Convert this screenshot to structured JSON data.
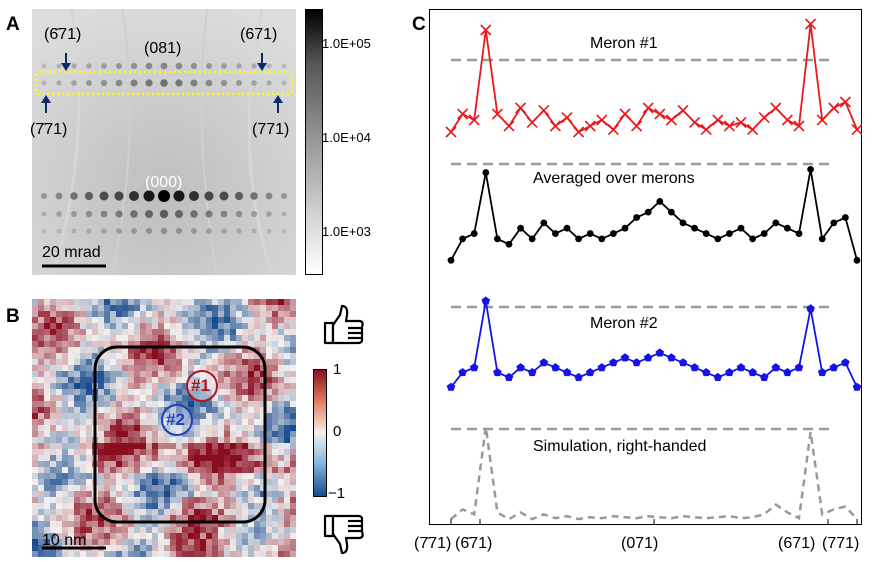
{
  "panels": {
    "a": {
      "letter": "A",
      "spots": {
        "top_left": "(6̄71)",
        "top_center": "(081)",
        "top_right": "(671)",
        "bottom_left": "(7̄71)",
        "bottom_right": "(771)",
        "center": "(000)"
      },
      "scale_bar": "20 mrad",
      "colorbar_ticks": [
        "1.0E+05",
        "1.0E+04",
        "1.0E+03"
      ],
      "colorbar_scale": "log"
    },
    "b": {
      "letter": "B",
      "scale_bar": "10 nm",
      "marker_1": "#1",
      "marker_2": "#2",
      "colorbar_ticks": [
        "1",
        "0",
        "−1"
      ],
      "colorbar_range": [
        -1,
        1
      ],
      "icons": [
        "thumbs-up-icon",
        "thumbs-down-icon"
      ]
    },
    "c": {
      "letter": "C",
      "x_tick_labels": [
        "(7̄71)",
        "(6̄71)",
        "(071)",
        "(671)",
        "(771)"
      ],
      "trace_labels": [
        "Meron #1",
        "Averaged over merons",
        "Meron #2",
        "Simulation, right-handed"
      ],
      "colors": {
        "meron1": "#e8191c",
        "average": "#000000",
        "meron2": "#1414e6",
        "simulation": "#999999"
      }
    }
  },
  "chart_data": {
    "type": "line",
    "x": [
      -7,
      -6.6,
      -6.2,
      -5.8,
      -5.4,
      -5,
      -4.6,
      -4.2,
      -3.8,
      -3.4,
      -3,
      -2.6,
      -2.2,
      -1.8,
      -1.4,
      -1,
      -0.6,
      -0.2,
      0.2,
      0.6,
      1,
      1.4,
      1.8,
      2.2,
      2.6,
      3,
      3.4,
      3.8,
      4.2,
      4.6,
      5,
      5.4,
      5.8,
      6.2,
      6.6,
      7
    ],
    "series": [
      {
        "name": "Meron #1",
        "marker": "x",
        "color": "#e8191c",
        "values": [
          0.1,
          0.25,
          0.2,
          0.95,
          0.25,
          0.15,
          0.3,
          0.18,
          0.28,
          0.15,
          0.22,
          0.1,
          0.15,
          0.2,
          0.12,
          0.25,
          0.15,
          0.3,
          0.25,
          0.2,
          0.28,
          0.18,
          0.12,
          0.2,
          0.15,
          0.18,
          0.12,
          0.22,
          0.3,
          0.2,
          0.15,
          1.0,
          0.2,
          0.3,
          0.35,
          0.12
        ]
      },
      {
        "name": "Averaged over merons",
        "marker": "o",
        "color": "#000000",
        "values": [
          0.1,
          0.3,
          0.35,
          0.92,
          0.3,
          0.25,
          0.4,
          0.3,
          0.45,
          0.35,
          0.4,
          0.3,
          0.35,
          0.3,
          0.35,
          0.4,
          0.5,
          0.55,
          0.65,
          0.55,
          0.45,
          0.4,
          0.35,
          0.3,
          0.35,
          0.4,
          0.3,
          0.35,
          0.45,
          0.4,
          0.35,
          0.95,
          0.3,
          0.45,
          0.5,
          0.1
        ]
      },
      {
        "name": "Meron #2",
        "marker": "p",
        "color": "#1414e6",
        "values": [
          0.1,
          0.25,
          0.3,
          0.98,
          0.25,
          0.2,
          0.3,
          0.25,
          0.35,
          0.3,
          0.25,
          0.2,
          0.25,
          0.3,
          0.35,
          0.4,
          0.35,
          0.4,
          0.45,
          0.4,
          0.35,
          0.3,
          0.25,
          0.2,
          0.25,
          0.3,
          0.25,
          0.2,
          0.3,
          0.25,
          0.3,
          0.9,
          0.25,
          0.3,
          0.35,
          0.1
        ]
      },
      {
        "name": "Simulation, right-handed",
        "marker": "dashed",
        "color": "#999999",
        "values": [
          0.05,
          0.15,
          0.1,
          1.0,
          0.12,
          0.05,
          0.12,
          0.05,
          0.1,
          0.06,
          0.08,
          0.05,
          0.07,
          0.06,
          0.08,
          0.07,
          0.06,
          0.08,
          0.07,
          0.06,
          0.08,
          0.07,
          0.06,
          0.07,
          0.08,
          0.06,
          0.07,
          0.1,
          0.2,
          0.12,
          0.06,
          0.95,
          0.1,
          0.15,
          0.18,
          0.05
        ]
      }
    ]
  }
}
